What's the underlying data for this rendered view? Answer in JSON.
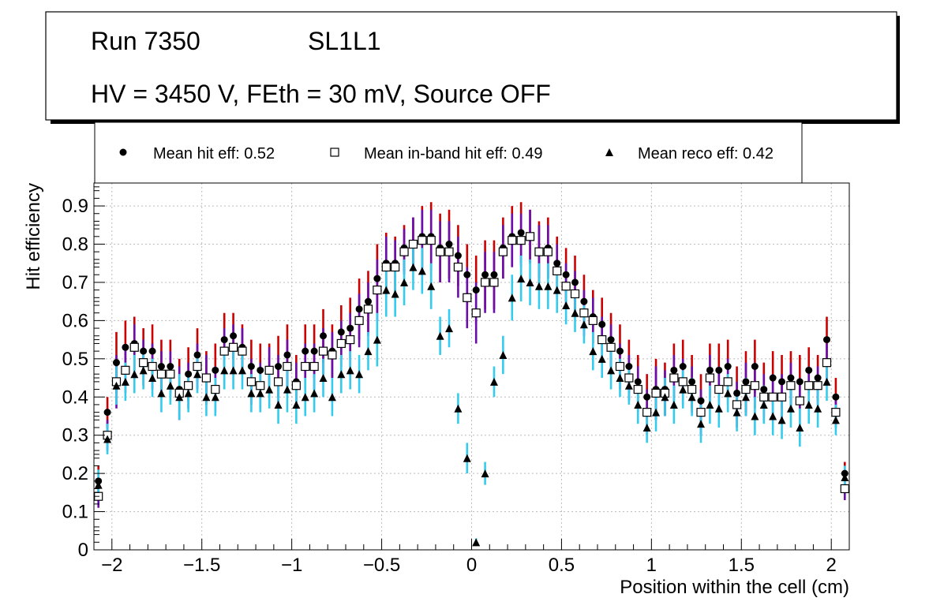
{
  "header": {
    "run": "Run 7350",
    "layer": "SL1L1",
    "conditions": "HV = 3450 V, FEth = 30 mV, Source OFF"
  },
  "legend": {
    "hit": "Mean hit  eff: 0.52",
    "inband": "Mean in-band hit eff: 0.49",
    "reco": "Mean reco eff: 0.42"
  },
  "colors": {
    "hit_err": "#cc0000",
    "inband_err": "#6a0dad",
    "reco_err": "#33ccee",
    "marker": "#000000",
    "grid": "#bbbbbb"
  },
  "chart_data": {
    "type": "scatter",
    "xlabel": "Position within the cell (cm)",
    "ylabel": "Hit efficiency",
    "xlim": [
      -2.1,
      2.1
    ],
    "ylim": [
      0,
      0.96
    ],
    "xticks": [
      -2,
      -1.5,
      -1,
      -0.5,
      0,
      0.5,
      1,
      1.5,
      2
    ],
    "xtick_labels": [
      "−2",
      "−1.5",
      "−1",
      "−0.5",
      "0",
      "0.5",
      "1",
      "1.5",
      "2"
    ],
    "yticks": [
      0,
      0.1,
      0.2,
      0.3,
      0.4,
      0.5,
      0.6,
      0.7,
      0.8,
      0.9
    ],
    "ytick_labels": [
      "0",
      "0.1",
      "0.2",
      "0.3",
      "0.4",
      "0.5",
      "0.6",
      "0.7",
      "0.8",
      "0.9"
    ],
    "grid": true,
    "x": [
      -2.075,
      -2.025,
      -1.975,
      -1.925,
      -1.875,
      -1.825,
      -1.775,
      -1.725,
      -1.675,
      -1.625,
      -1.575,
      -1.525,
      -1.475,
      -1.425,
      -1.375,
      -1.325,
      -1.275,
      -1.225,
      -1.175,
      -1.125,
      -1.075,
      -1.025,
      -0.975,
      -0.925,
      -0.875,
      -0.825,
      -0.775,
      -0.725,
      -0.675,
      -0.625,
      -0.575,
      -0.525,
      -0.475,
      -0.425,
      -0.375,
      -0.325,
      -0.275,
      -0.225,
      -0.175,
      -0.125,
      -0.075,
      -0.025,
      0.025,
      0.075,
      0.125,
      0.175,
      0.225,
      0.275,
      0.325,
      0.375,
      0.425,
      0.475,
      0.525,
      0.575,
      0.625,
      0.675,
      0.725,
      0.775,
      0.825,
      0.875,
      0.925,
      0.975,
      1.025,
      1.075,
      1.125,
      1.175,
      1.225,
      1.275,
      1.325,
      1.375,
      1.425,
      1.475,
      1.525,
      1.575,
      1.625,
      1.675,
      1.725,
      1.775,
      1.825,
      1.875,
      1.925,
      1.975,
      2.025,
      2.075
    ],
    "series": [
      {
        "name": "Mean hit  eff: 0.52",
        "marker": "circle",
        "values": [
          0.18,
          0.36,
          0.49,
          0.53,
          0.54,
          0.52,
          0.52,
          0.48,
          0.48,
          0.42,
          0.46,
          0.51,
          0.45,
          0.47,
          0.55,
          0.56,
          0.53,
          0.48,
          0.47,
          0.47,
          0.48,
          0.51,
          0.44,
          0.52,
          0.52,
          0.56,
          0.52,
          0.57,
          0.58,
          0.63,
          0.65,
          0.71,
          0.75,
          0.75,
          0.79,
          0.8,
          0.82,
          0.82,
          0.79,
          0.8,
          0.77,
          0.72,
          0.68,
          0.72,
          0.72,
          0.79,
          0.82,
          0.83,
          0.82,
          0.78,
          0.79,
          0.75,
          0.72,
          0.7,
          0.65,
          0.61,
          0.59,
          0.55,
          0.52,
          0.48,
          0.44,
          0.4,
          0.42,
          0.42,
          0.47,
          0.48,
          0.44,
          0.39,
          0.47,
          0.47,
          0.48,
          0.41,
          0.44,
          0.48,
          0.42,
          0.45,
          0.44,
          0.45,
          0.44,
          0.47,
          0.45,
          0.55,
          0.4,
          0.2
        ],
        "errors": [
          0.04,
          0.04,
          0.08,
          0.07,
          0.07,
          0.06,
          0.07,
          0.07,
          0.07,
          0.08,
          0.07,
          0.07,
          0.07,
          0.07,
          0.07,
          0.06,
          0.06,
          0.07,
          0.07,
          0.07,
          0.08,
          0.08,
          0.07,
          0.07,
          0.07,
          0.07,
          0.07,
          0.07,
          0.08,
          0.08,
          0.08,
          0.09,
          0.08,
          0.07,
          0.06,
          0.07,
          0.08,
          0.09,
          0.09,
          0.09,
          0.08,
          0.08,
          0.09,
          0.09,
          0.09,
          0.08,
          0.08,
          0.08,
          0.07,
          0.08,
          0.08,
          0.07,
          0.07,
          0.07,
          0.07,
          0.07,
          0.07,
          0.07,
          0.07,
          0.07,
          0.07,
          0.06,
          0.08,
          0.07,
          0.07,
          0.07,
          0.07,
          0.07,
          0.07,
          0.07,
          0.07,
          0.07,
          0.08,
          0.07,
          0.07,
          0.07,
          0.07,
          0.07,
          0.07,
          0.06,
          0.06,
          0.06,
          0.05,
          0.03
        ]
      },
      {
        "name": "Mean in-band hit eff: 0.49",
        "marker": "open-square",
        "values": [
          0.14,
          0.3,
          0.44,
          0.47,
          0.53,
          0.49,
          0.48,
          0.46,
          0.46,
          0.41,
          0.43,
          0.48,
          0.45,
          0.42,
          0.52,
          0.53,
          0.52,
          0.44,
          0.43,
          0.47,
          0.44,
          0.48,
          0.43,
          0.48,
          0.48,
          0.52,
          0.51,
          0.54,
          0.55,
          0.6,
          0.63,
          0.68,
          0.74,
          0.74,
          0.78,
          0.8,
          0.81,
          0.81,
          0.78,
          0.78,
          0.74,
          0.66,
          0.62,
          0.7,
          0.7,
          0.78,
          0.81,
          0.81,
          0.82,
          0.78,
          0.78,
          0.73,
          0.69,
          0.67,
          0.62,
          0.6,
          0.55,
          0.53,
          0.48,
          0.45,
          0.42,
          0.36,
          0.41,
          0.41,
          0.45,
          0.44,
          0.42,
          0.36,
          0.45,
          0.42,
          0.44,
          0.38,
          0.42,
          0.43,
          0.4,
          0.4,
          0.4,
          0.43,
          0.39,
          0.43,
          0.43,
          0.49,
          0.36,
          0.16
        ],
        "errors": [
          0.03,
          0.04,
          0.07,
          0.06,
          0.06,
          0.06,
          0.06,
          0.06,
          0.06,
          0.07,
          0.06,
          0.06,
          0.06,
          0.06,
          0.06,
          0.06,
          0.06,
          0.06,
          0.06,
          0.06,
          0.07,
          0.07,
          0.06,
          0.06,
          0.06,
          0.06,
          0.06,
          0.06,
          0.07,
          0.07,
          0.07,
          0.08,
          0.08,
          0.07,
          0.06,
          0.07,
          0.08,
          0.08,
          0.08,
          0.08,
          0.08,
          0.08,
          0.08,
          0.08,
          0.08,
          0.07,
          0.07,
          0.07,
          0.07,
          0.07,
          0.07,
          0.07,
          0.06,
          0.06,
          0.06,
          0.06,
          0.06,
          0.06,
          0.06,
          0.06,
          0.06,
          0.06,
          0.07,
          0.06,
          0.06,
          0.06,
          0.06,
          0.06,
          0.06,
          0.06,
          0.06,
          0.06,
          0.07,
          0.06,
          0.06,
          0.06,
          0.06,
          0.06,
          0.06,
          0.05,
          0.05,
          0.05,
          0.04,
          0.03
        ]
      },
      {
        "name": "Mean reco eff: 0.42",
        "marker": "triangle",
        "values": [
          0.17,
          0.29,
          0.43,
          0.44,
          0.46,
          0.47,
          0.45,
          0.41,
          0.43,
          0.4,
          0.41,
          0.46,
          0.4,
          0.4,
          0.47,
          0.47,
          0.47,
          0.41,
          0.41,
          0.42,
          0.38,
          0.42,
          0.38,
          0.4,
          0.41,
          0.45,
          0.4,
          0.46,
          0.47,
          0.46,
          0.52,
          0.55,
          0.68,
          0.67,
          0.7,
          0.74,
          0.73,
          0.69,
          0.56,
          0.58,
          0.37,
          0.24,
          0.02,
          0.2,
          0.44,
          0.51,
          0.66,
          0.71,
          0.7,
          0.69,
          0.69,
          0.68,
          0.64,
          0.62,
          0.59,
          0.52,
          0.5,
          0.47,
          0.45,
          0.43,
          0.38,
          0.32,
          0.36,
          0.4,
          0.38,
          0.42,
          0.4,
          0.33,
          0.38,
          0.37,
          0.41,
          0.36,
          0.4,
          0.35,
          0.38,
          0.35,
          0.34,
          0.37,
          0.32,
          0.38,
          0.37,
          0.44,
          0.34,
          0.19
        ],
        "errors": [
          0.04,
          0.04,
          0.05,
          0.05,
          0.05,
          0.05,
          0.05,
          0.05,
          0.05,
          0.06,
          0.05,
          0.05,
          0.05,
          0.05,
          0.05,
          0.05,
          0.05,
          0.05,
          0.05,
          0.05,
          0.05,
          0.06,
          0.05,
          0.05,
          0.05,
          0.05,
          0.05,
          0.05,
          0.05,
          0.05,
          0.05,
          0.07,
          0.07,
          0.06,
          0.06,
          0.06,
          0.06,
          0.06,
          0.05,
          0.05,
          0.04,
          0.04,
          0.01,
          0.03,
          0.04,
          0.05,
          0.06,
          0.06,
          0.06,
          0.06,
          0.06,
          0.06,
          0.05,
          0.05,
          0.05,
          0.05,
          0.05,
          0.05,
          0.05,
          0.05,
          0.05,
          0.04,
          0.05,
          0.05,
          0.05,
          0.05,
          0.05,
          0.05,
          0.05,
          0.05,
          0.05,
          0.05,
          0.05,
          0.05,
          0.05,
          0.05,
          0.05,
          0.05,
          0.05,
          0.05,
          0.05,
          0.05,
          0.04,
          0.03
        ]
      }
    ]
  }
}
